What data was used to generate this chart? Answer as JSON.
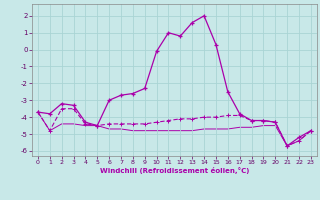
{
  "xlabel": "Windchill (Refroidissement éolien,°C)",
  "xlim": [
    -0.5,
    23.5
  ],
  "ylim": [
    -6.3,
    2.7
  ],
  "yticks": [
    2,
    1,
    0,
    -1,
    -2,
    -3,
    -4,
    -5,
    -6
  ],
  "xticks": [
    0,
    1,
    2,
    3,
    4,
    5,
    6,
    7,
    8,
    9,
    10,
    11,
    12,
    13,
    14,
    15,
    16,
    17,
    18,
    19,
    20,
    21,
    22,
    23
  ],
  "bg_color": "#c8e8e8",
  "grid_color": "#aad4d4",
  "line_color": "#aa00aa",
  "line1": [
    -3.7,
    -3.8,
    -3.2,
    -3.3,
    -4.3,
    -4.5,
    -3.0,
    -2.7,
    -2.6,
    -2.3,
    -0.1,
    1.0,
    0.8,
    1.6,
    2.0,
    0.3,
    -2.5,
    -3.8,
    -4.2,
    -4.2,
    -4.3,
    -5.7,
    -5.2,
    -4.8
  ],
  "line2": [
    -3.7,
    -4.8,
    -3.5,
    -3.5,
    -4.4,
    -4.5,
    -4.4,
    -4.4,
    -4.4,
    -4.4,
    -4.3,
    -4.2,
    -4.1,
    -4.1,
    -4.0,
    -4.0,
    -3.9,
    -3.9,
    -4.2,
    -4.2,
    -4.3,
    -5.7,
    -5.4,
    -4.8
  ],
  "line3": [
    -3.7,
    -4.8,
    -4.4,
    -4.4,
    -4.5,
    -4.5,
    -4.7,
    -4.7,
    -4.8,
    -4.8,
    -4.8,
    -4.8,
    -4.8,
    -4.8,
    -4.7,
    -4.7,
    -4.7,
    -4.6,
    -4.6,
    -4.5,
    -4.5,
    -5.7,
    -5.4,
    -4.8
  ]
}
